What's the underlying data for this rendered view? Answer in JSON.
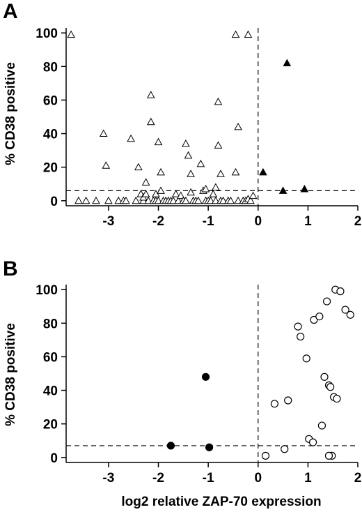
{
  "chart_data": [
    {
      "type": "scatter",
      "panel": "A",
      "ylabel": "% CD38 positive",
      "xlabel": "",
      "xlim": [
        -3.85,
        2.0
      ],
      "ylim": [
        -3,
        103
      ],
      "x_ticks": [
        -3,
        -2,
        -1,
        0,
        1,
        2
      ],
      "y_ticks": [
        0,
        20,
        40,
        60,
        80,
        100
      ],
      "x_tick_labels": [
        "-3",
        "-2",
        "-1",
        "0",
        "1",
        "2"
      ],
      "y_tick_labels": [
        "0",
        "20",
        "40",
        "60",
        "80",
        "100"
      ],
      "thresholds": {
        "x": 0,
        "y": 6
      },
      "grid": false,
      "series": [
        {
          "marker": "triangle-open",
          "points": [
            [
              -3.75,
              99
            ],
            [
              -3.6,
              0
            ],
            [
              -3.45,
              0
            ],
            [
              -3.25,
              0
            ],
            [
              -3.1,
              40
            ],
            [
              -3.05,
              21
            ],
            [
              -3.0,
              0
            ],
            [
              -2.8,
              0
            ],
            [
              -2.7,
              0
            ],
            [
              -2.65,
              0
            ],
            [
              -2.55,
              37
            ],
            [
              -2.45,
              0
            ],
            [
              -2.4,
              20
            ],
            [
              -2.35,
              4
            ],
            [
              -2.3,
              0
            ],
            [
              -2.3,
              2
            ],
            [
              -2.25,
              11
            ],
            [
              -2.25,
              4
            ],
            [
              -2.2,
              0
            ],
            [
              -2.15,
              47
            ],
            [
              -2.15,
              63
            ],
            [
              -2.1,
              0
            ],
            [
              -2.05,
              4
            ],
            [
              -2.05,
              0
            ],
            [
              -2.0,
              35
            ],
            [
              -2.0,
              0
            ],
            [
              -1.95,
              17
            ],
            [
              -1.95,
              6
            ],
            [
              -1.9,
              0
            ],
            [
              -1.85,
              0
            ],
            [
              -1.8,
              0
            ],
            [
              -1.75,
              0
            ],
            [
              -1.7,
              0
            ],
            [
              -1.65,
              4
            ],
            [
              -1.6,
              0
            ],
            [
              -1.55,
              3
            ],
            [
              -1.5,
              0
            ],
            [
              -1.45,
              0
            ],
            [
              -1.45,
              34
            ],
            [
              -1.4,
              27
            ],
            [
              -1.35,
              5
            ],
            [
              -1.35,
              16
            ],
            [
              -1.3,
              0
            ],
            [
              -1.25,
              0
            ],
            [
              -1.2,
              0
            ],
            [
              -1.15,
              22
            ],
            [
              -1.1,
              6
            ],
            [
              -1.05,
              7
            ],
            [
              -1.05,
              0
            ],
            [
              -1.0,
              0
            ],
            [
              -0.95,
              0
            ],
            [
              -0.9,
              4
            ],
            [
              -0.85,
              0
            ],
            [
              -0.85,
              8
            ],
            [
              -0.8,
              59
            ],
            [
              -0.8,
              33
            ],
            [
              -0.75,
              16
            ],
            [
              -0.75,
              0
            ],
            [
              -0.7,
              0
            ],
            [
              -0.6,
              0
            ],
            [
              -0.55,
              0
            ],
            [
              -0.45,
              17
            ],
            [
              -0.45,
              99
            ],
            [
              -0.4,
              44
            ],
            [
              -0.4,
              0
            ],
            [
              -0.3,
              0
            ],
            [
              -0.25,
              0
            ],
            [
              -0.2,
              99
            ],
            [
              -0.2,
              1
            ],
            [
              -0.15,
              0
            ],
            [
              -0.1,
              3
            ]
          ]
        },
        {
          "marker": "triangle-filled",
          "points": [
            [
              0.1,
              17
            ],
            [
              0.5,
              6
            ],
            [
              0.58,
              82
            ],
            [
              0.93,
              7
            ]
          ]
        }
      ]
    },
    {
      "type": "scatter",
      "panel": "B",
      "ylabel": "% CD38 positive",
      "xlabel": "log2 relative ZAP-70 expression",
      "xlim": [
        -3.85,
        2.0
      ],
      "ylim": [
        -3,
        103
      ],
      "x_ticks": [
        -3,
        -2,
        -1,
        0,
        1,
        2
      ],
      "y_ticks": [
        0,
        20,
        40,
        60,
        80,
        100
      ],
      "x_tick_labels": [
        "-3",
        "-2",
        "-1",
        "0",
        "1",
        "2"
      ],
      "y_tick_labels": [
        "0",
        "20",
        "40",
        "60",
        "80",
        "100"
      ],
      "thresholds": {
        "x": 0,
        "y": 7
      },
      "grid": false,
      "series": [
        {
          "marker": "circle-filled",
          "points": [
            [
              -1.75,
              7
            ],
            [
              -1.05,
              48
            ],
            [
              -0.98,
              6
            ]
          ]
        },
        {
          "marker": "circle-open",
          "points": [
            [
              0.15,
              1
            ],
            [
              0.33,
              32
            ],
            [
              0.53,
              5
            ],
            [
              0.6,
              34
            ],
            [
              0.8,
              78
            ],
            [
              0.85,
              72
            ],
            [
              0.97,
              59
            ],
            [
              1.02,
              11
            ],
            [
              1.12,
              82
            ],
            [
              1.1,
              9
            ],
            [
              1.23,
              84
            ],
            [
              1.28,
              19
            ],
            [
              1.33,
              48
            ],
            [
              1.38,
              93
            ],
            [
              1.42,
              43
            ],
            [
              1.45,
              42
            ],
            [
              1.48,
              1
            ],
            [
              1.52,
              36
            ],
            [
              1.55,
              100
            ],
            [
              1.58,
              35
            ],
            [
              1.42,
              1
            ],
            [
              1.65,
              99
            ],
            [
              1.75,
              88
            ],
            [
              1.85,
              85
            ]
          ]
        }
      ]
    }
  ]
}
